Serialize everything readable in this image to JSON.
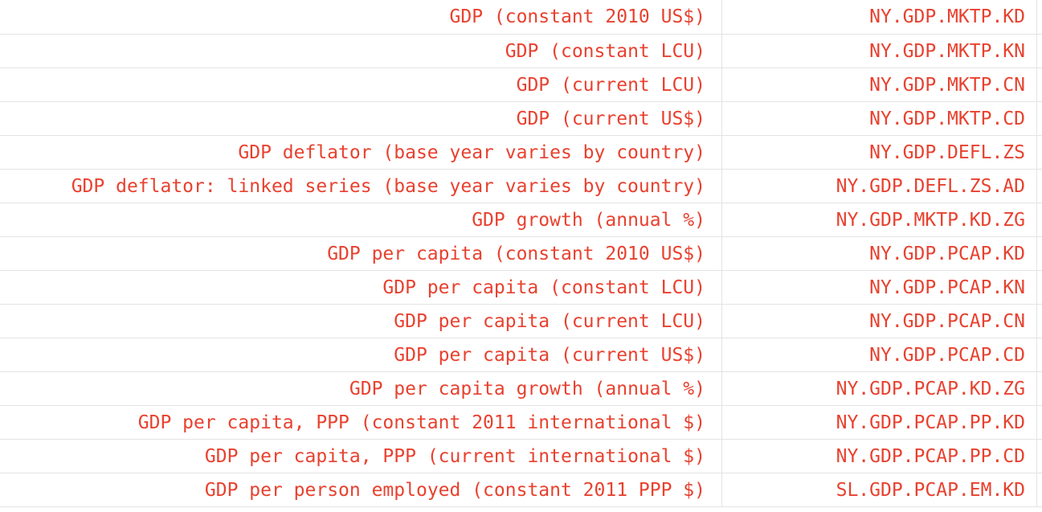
{
  "table": {
    "rows": [
      {
        "name": "GDP (constant 2010 US$)",
        "code": "NY.GDP.MKTP.KD"
      },
      {
        "name": "GDP (constant LCU)",
        "code": "NY.GDP.MKTP.KN"
      },
      {
        "name": "GDP (current LCU)",
        "code": "NY.GDP.MKTP.CN"
      },
      {
        "name": "GDP (current US$)",
        "code": "NY.GDP.MKTP.CD"
      },
      {
        "name": "GDP deflator (base year varies by country)",
        "code": "NY.GDP.DEFL.ZS"
      },
      {
        "name": "GDP deflator: linked series (base year varies by country)",
        "code": "NY.GDP.DEFL.ZS.AD"
      },
      {
        "name": "GDP growth (annual %)",
        "code": "NY.GDP.MKTP.KD.ZG"
      },
      {
        "name": "GDP per capita (constant 2010 US$)",
        "code": "NY.GDP.PCAP.KD"
      },
      {
        "name": "GDP per capita (constant LCU)",
        "code": "NY.GDP.PCAP.KN"
      },
      {
        "name": "GDP per capita (current LCU)",
        "code": "NY.GDP.PCAP.CN"
      },
      {
        "name": "GDP per capita (current US$)",
        "code": "NY.GDP.PCAP.CD"
      },
      {
        "name": "GDP per capita growth (annual %)",
        "code": "NY.GDP.PCAP.KD.ZG"
      },
      {
        "name": "GDP per capita, PPP (constant 2011 international $)",
        "code": "NY.GDP.PCAP.PP.KD"
      },
      {
        "name": "GDP per capita, PPP (current international $)",
        "code": "NY.GDP.PCAP.PP.CD"
      },
      {
        "name": "GDP per person employed (constant 2011 PPP $)",
        "code": "SL.GDP.PCAP.EM.KD"
      }
    ]
  },
  "colors": {
    "text": "#e8412f",
    "gridline": "#e4e4e4"
  }
}
